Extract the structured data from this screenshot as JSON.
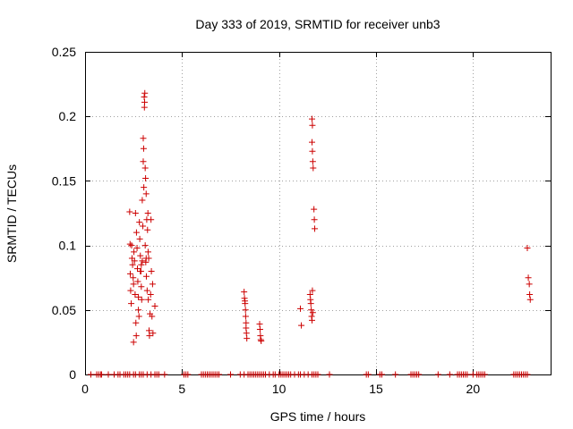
{
  "chart_data": {
    "type": "scatter",
    "title": "Day 333 of 2019, SRMTID for receiver unb3",
    "xlabel": "GPS time / hours",
    "ylabel": "SRMTID / TECUs",
    "xlim": [
      0,
      24
    ],
    "ylim": [
      0,
      0.25
    ],
    "xticks": [
      0,
      5,
      10,
      15,
      20
    ],
    "xtick_labels": [
      "0",
      "5",
      "10",
      "15",
      "20"
    ],
    "yticks": [
      0,
      0.05,
      0.1,
      0.15,
      0.2,
      0.25
    ],
    "ytick_labels": [
      "0",
      "0.05",
      "0.1",
      "0.15",
      "0.2",
      "0.25"
    ],
    "grid": true,
    "legend": "none",
    "marker": "+",
    "color": "#cc0000",
    "series": [
      {
        "name": "SRMTID",
        "points": [
          [
            0.3,
            0
          ],
          [
            0.6,
            0
          ],
          [
            0.7,
            0
          ],
          [
            0.8,
            0
          ],
          [
            0.85,
            0
          ],
          [
            1.2,
            0
          ],
          [
            1.5,
            0
          ],
          [
            1.7,
            0
          ],
          [
            1.8,
            0
          ],
          [
            2.0,
            0
          ],
          [
            2.1,
            0
          ],
          [
            2.2,
            0
          ],
          [
            2.3,
            0
          ],
          [
            2.5,
            0
          ],
          [
            2.6,
            0
          ],
          [
            2.8,
            0
          ],
          [
            2.9,
            0
          ],
          [
            3.0,
            0
          ],
          [
            3.2,
            0
          ],
          [
            3.4,
            0
          ],
          [
            3.6,
            0
          ],
          [
            3.7,
            0
          ],
          [
            3.8,
            0
          ],
          [
            4.1,
            0
          ],
          [
            5.1,
            0
          ],
          [
            5.2,
            0
          ],
          [
            5.3,
            0
          ],
          [
            6.0,
            0
          ],
          [
            6.1,
            0
          ],
          [
            6.2,
            0
          ],
          [
            6.3,
            0
          ],
          [
            6.4,
            0
          ],
          [
            6.5,
            0
          ],
          [
            6.6,
            0
          ],
          [
            6.7,
            0
          ],
          [
            6.8,
            0
          ],
          [
            6.9,
            0
          ],
          [
            7.5,
            0
          ],
          [
            8.0,
            0
          ],
          [
            8.2,
            0
          ],
          [
            8.4,
            0
          ],
          [
            8.5,
            0
          ],
          [
            8.6,
            0
          ],
          [
            8.7,
            0
          ],
          [
            8.8,
            0
          ],
          [
            8.9,
            0
          ],
          [
            9.0,
            0
          ],
          [
            9.1,
            0
          ],
          [
            9.2,
            0
          ],
          [
            9.3,
            0
          ],
          [
            9.5,
            0
          ],
          [
            9.7,
            0
          ],
          [
            9.8,
            0
          ],
          [
            10.0,
            0
          ],
          [
            10.1,
            0
          ],
          [
            10.2,
            0
          ],
          [
            10.3,
            0
          ],
          [
            10.4,
            0
          ],
          [
            10.5,
            0
          ],
          [
            10.6,
            0
          ],
          [
            10.8,
            0
          ],
          [
            11.0,
            0
          ],
          [
            11.1,
            0
          ],
          [
            11.3,
            0
          ],
          [
            11.5,
            0
          ],
          [
            11.7,
            0
          ],
          [
            11.8,
            0
          ],
          [
            11.9,
            0
          ],
          [
            12.0,
            0
          ],
          [
            12.6,
            0
          ],
          [
            14.5,
            0
          ],
          [
            14.6,
            0
          ],
          [
            15.2,
            0
          ],
          [
            15.3,
            0
          ],
          [
            16.0,
            0
          ],
          [
            16.8,
            0
          ],
          [
            16.9,
            0
          ],
          [
            17.0,
            0
          ],
          [
            17.1,
            0
          ],
          [
            17.2,
            0
          ],
          [
            18.2,
            0
          ],
          [
            18.8,
            0
          ],
          [
            19.2,
            0
          ],
          [
            19.3,
            0
          ],
          [
            19.4,
            0
          ],
          [
            19.5,
            0
          ],
          [
            19.6,
            0
          ],
          [
            19.7,
            0
          ],
          [
            20.0,
            0
          ],
          [
            20.2,
            0
          ],
          [
            20.3,
            0
          ],
          [
            20.4,
            0
          ],
          [
            20.5,
            0
          ],
          [
            20.6,
            0
          ],
          [
            22.1,
            0
          ],
          [
            22.2,
            0
          ],
          [
            22.3,
            0
          ],
          [
            22.4,
            0
          ],
          [
            22.5,
            0
          ],
          [
            22.6,
            0
          ],
          [
            22.7,
            0
          ],
          [
            22.8,
            0
          ],
          [
            2.3,
            0.126
          ],
          [
            2.32,
            0.101
          ],
          [
            2.33,
            0.078
          ],
          [
            2.35,
            0.065
          ],
          [
            2.38,
            0.055
          ],
          [
            2.4,
            0.1
          ],
          [
            2.42,
            0.09
          ],
          [
            2.45,
            0.085
          ],
          [
            2.48,
            0.075
          ],
          [
            2.5,
            0.07
          ],
          [
            2.5,
            0.025
          ],
          [
            2.52,
            0.095
          ],
          [
            2.55,
            0.088
          ],
          [
            2.58,
            0.062
          ],
          [
            2.6,
            0.125
          ],
          [
            2.62,
            0.04
          ],
          [
            2.64,
            0.03
          ],
          [
            2.65,
            0.11
          ],
          [
            2.68,
            0.098
          ],
          [
            2.7,
            0.082
          ],
          [
            2.72,
            0.072
          ],
          [
            2.75,
            0.05
          ],
          [
            2.78,
            0.045
          ],
          [
            2.8,
            0.118
          ],
          [
            2.82,
            0.105
          ],
          [
            2.85,
            0.092
          ],
          [
            2.88,
            0.08
          ],
          [
            2.9,
            0.068
          ],
          [
            2.92,
            0.058
          ],
          [
            2.95,
            0.135
          ],
          [
            2.98,
            0.115
          ],
          [
            3.0,
            0.183
          ],
          [
            3.0,
            0.165
          ],
          [
            3.02,
            0.175
          ],
          [
            3.03,
            0.145
          ],
          [
            3.05,
            0.215
          ],
          [
            3.06,
            0.207
          ],
          [
            3.07,
            0.211
          ],
          [
            3.08,
            0.218
          ],
          [
            3.1,
            0.16
          ],
          [
            3.1,
            0.1
          ],
          [
            3.12,
            0.152
          ],
          [
            3.13,
            0.087
          ],
          [
            3.15,
            0.14
          ],
          [
            3.16,
            0.076
          ],
          [
            3.18,
            0.12
          ],
          [
            3.2,
            0.065
          ],
          [
            3.22,
            0.112
          ],
          [
            3.24,
            0.125
          ],
          [
            3.26,
            0.058
          ],
          [
            3.28,
            0.09
          ],
          [
            3.3,
            0.034
          ],
          [
            3.32,
            0.03
          ],
          [
            3.35,
            0.047
          ],
          [
            3.38,
            0.062
          ],
          [
            3.4,
            0.12
          ],
          [
            3.42,
            0.08
          ],
          [
            3.45,
            0.045
          ],
          [
            3.48,
            0.07
          ],
          [
            3.5,
            0.032
          ],
          [
            3.6,
            0.053
          ],
          [
            2.85,
            0.08
          ],
          [
            2.9,
            0.085
          ],
          [
            2.95,
            0.088
          ],
          [
            3.15,
            0.09
          ],
          [
            3.25,
            0.095
          ],
          [
            2.75,
            0.06
          ],
          [
            8.2,
            0.064
          ],
          [
            8.22,
            0.059
          ],
          [
            8.24,
            0.057
          ],
          [
            8.25,
            0.055
          ],
          [
            8.27,
            0.05
          ],
          [
            8.28,
            0.045
          ],
          [
            8.3,
            0.04
          ],
          [
            8.3,
            0.036
          ],
          [
            8.32,
            0.032
          ],
          [
            8.34,
            0.028
          ],
          [
            9.0,
            0.039
          ],
          [
            9.02,
            0.035
          ],
          [
            9.04,
            0.03
          ],
          [
            9.06,
            0.027
          ],
          [
            9.08,
            0.026
          ],
          [
            11.1,
            0.051
          ],
          [
            11.15,
            0.038
          ],
          [
            11.6,
            0.062
          ],
          [
            11.62,
            0.058
          ],
          [
            11.64,
            0.055
          ],
          [
            11.66,
            0.05
          ],
          [
            11.68,
            0.045
          ],
          [
            11.7,
            0.042
          ],
          [
            11.72,
            0.065
          ],
          [
            11.74,
            0.048
          ],
          [
            11.7,
            0.18
          ],
          [
            11.72,
            0.173
          ],
          [
            11.74,
            0.165
          ],
          [
            11.76,
            0.16
          ],
          [
            11.7,
            0.198
          ],
          [
            11.72,
            0.193
          ],
          [
            11.8,
            0.128
          ],
          [
            11.82,
            0.12
          ],
          [
            11.84,
            0.113
          ],
          [
            22.8,
            0.098
          ],
          [
            22.85,
            0.075
          ],
          [
            22.9,
            0.07
          ],
          [
            22.92,
            0.062
          ],
          [
            22.95,
            0.058
          ]
        ]
      }
    ]
  }
}
